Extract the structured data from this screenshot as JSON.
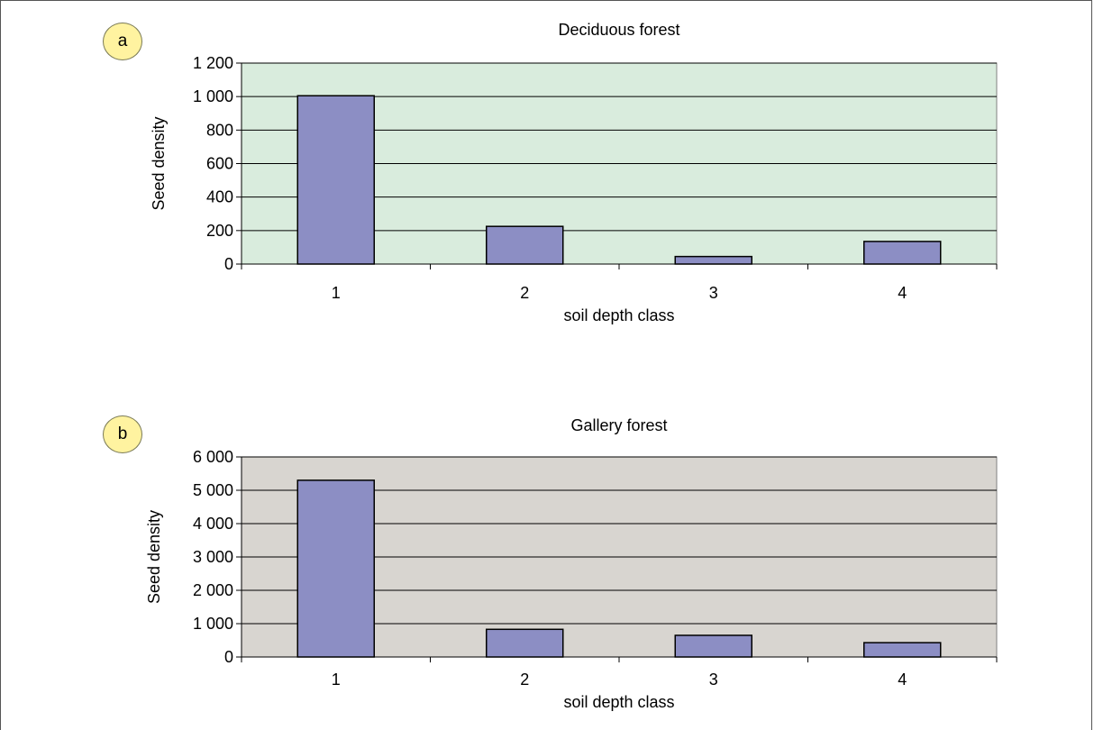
{
  "panels": [
    {
      "letter": "a"
    },
    {
      "letter": "b"
    }
  ],
  "chart_data": [
    {
      "type": "bar",
      "title": "Deciduous forest",
      "xlabel": "soil depth class",
      "ylabel": "Seed density",
      "categories": [
        "1",
        "2",
        "3",
        "4"
      ],
      "values": [
        1005,
        225,
        45,
        135
      ],
      "ylim": [
        0,
        1200
      ],
      "yticks": [
        0,
        200,
        400,
        600,
        800,
        1000,
        1200
      ],
      "ytick_labels": [
        "0",
        "200",
        "400",
        "600",
        "800",
        "1 000",
        "1 200"
      ],
      "grid": true,
      "colors": {
        "plot_bg": "#d9ecdd",
        "bar": "#8c8ec4",
        "bar_edge": "#000000"
      }
    },
    {
      "type": "bar",
      "title": "Gallery forest",
      "xlabel": "soil depth class",
      "ylabel": "Seed density",
      "categories": [
        "1",
        "2",
        "3",
        "4"
      ],
      "values": [
        5300,
        830,
        650,
        430
      ],
      "ylim": [
        0,
        6000
      ],
      "yticks": [
        0,
        1000,
        2000,
        3000,
        4000,
        5000,
        6000
      ],
      "ytick_labels": [
        "0",
        "1 000",
        "2 000",
        "3 000",
        "4 000",
        "5 000",
        "6 000"
      ],
      "grid": true,
      "colors": {
        "plot_bg": "#d8d5d0",
        "bar": "#8c8ec4",
        "bar_edge": "#000000"
      }
    }
  ]
}
